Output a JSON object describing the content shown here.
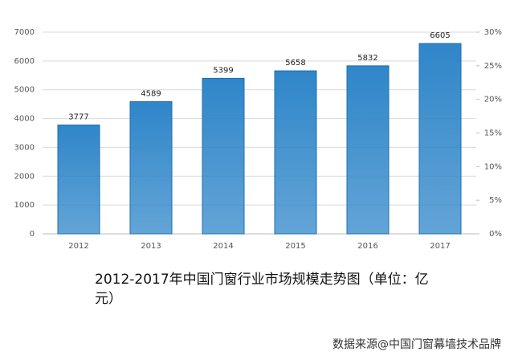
{
  "chart_data": {
    "type": "bar",
    "title": "2012-2017年中国门窗行业市场规模走势图（单位：亿元）",
    "source": "数据来源@中国门窗幕墙技术品牌",
    "categories": [
      "2012",
      "2013",
      "2014",
      "2015",
      "2016",
      "2017"
    ],
    "values": [
      3777,
      4589,
      5399,
      5658,
      5832,
      6605
    ],
    "color": "#2f86c9",
    "ylim": [
      0,
      7000
    ],
    "yticks": [
      0,
      1000,
      2000,
      3000,
      4000,
      5000,
      6000,
      7000
    ],
    "y2lim": [
      0,
      30
    ],
    "y2ticks": [
      {
        "value": 0,
        "label": "0%"
      },
      {
        "value": 5,
        "label": "5%"
      },
      {
        "value": 10,
        "label": "10%"
      },
      {
        "value": 15,
        "label": "15%"
      },
      {
        "value": 20,
        "label": "20%"
      },
      {
        "value": 25,
        "label": "25%"
      },
      {
        "value": 30,
        "label": "30%"
      }
    ],
    "grid": true
  }
}
